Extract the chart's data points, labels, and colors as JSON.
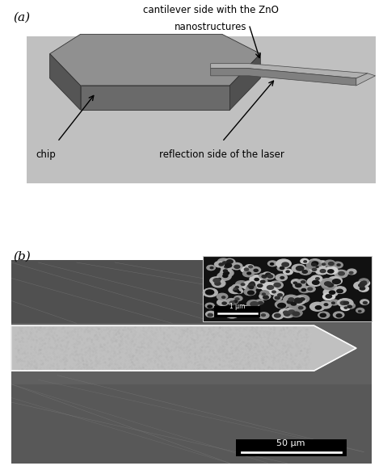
{
  "fig_width": 4.74,
  "fig_height": 5.82,
  "dpi": 100,
  "bg_color": "#ffffff",
  "panel_a_label": "(a)",
  "panel_b_label": "(b)",
  "title_line1": "cantilever side with the ZnO",
  "title_line2": "nanostructures",
  "label_chip": "chip",
  "label_reflection": "reflection side of the laser",
  "scalebar_50um": "50 μm",
  "scalebar_1um": "1 μm",
  "panel_a_bg": "#c0c0c0",
  "chip_top_color": "#909090",
  "chip_side_color": "#555555",
  "chip_front_color": "#6a6a6a",
  "chip_right_color": "#505050",
  "cant_top_color": "#b0b0b0",
  "cant_side_color": "#808080",
  "sem_bg_color": "#606060",
  "cant_sem_color": "#c0c0c0",
  "inset_bg_color": "#111111"
}
